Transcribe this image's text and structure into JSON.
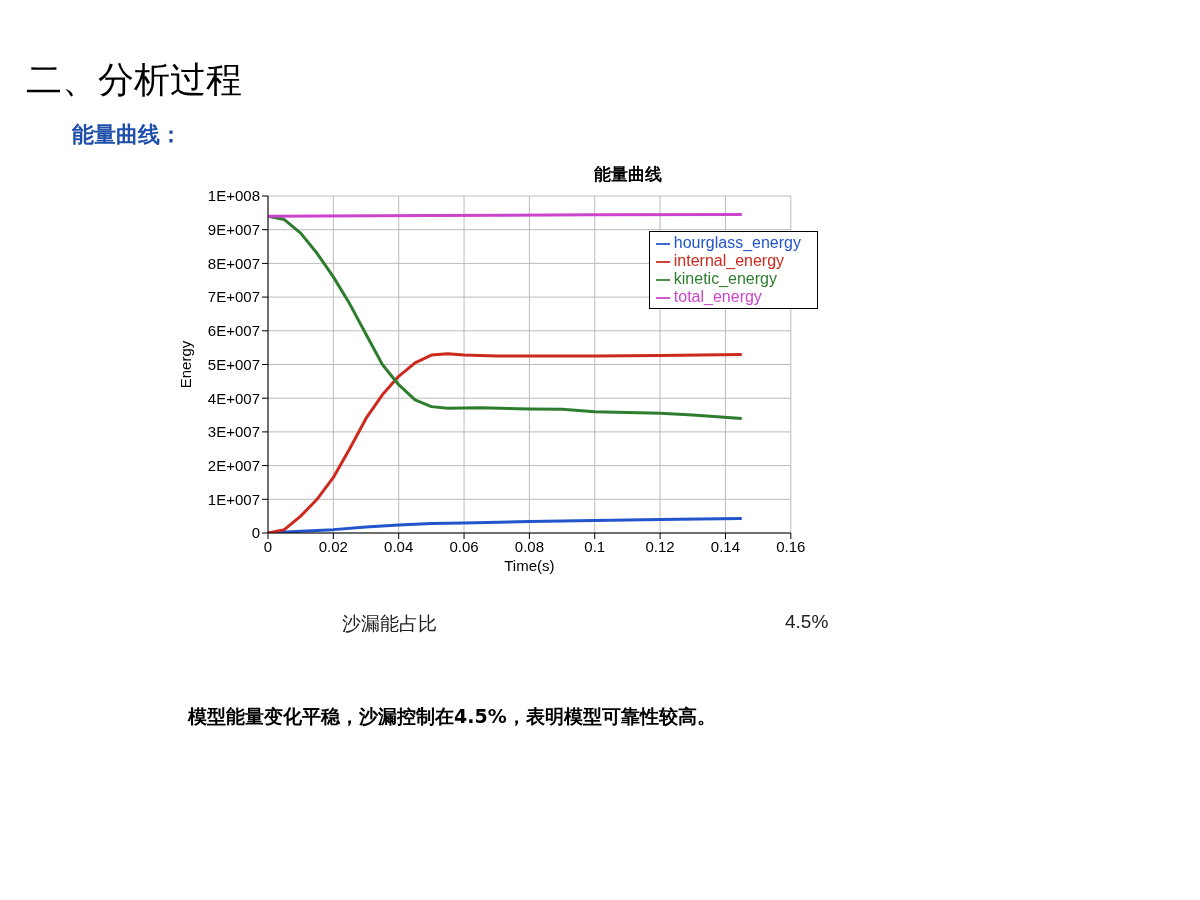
{
  "chart_data": {
    "type": "line",
    "title": "能量曲线",
    "xlabel": "Time(s)",
    "ylabel": "Energy",
    "xlim": [
      0,
      0.16
    ],
    "xticks": [
      0,
      0.02,
      0.04,
      0.06,
      0.08,
      0.1,
      0.12,
      0.14,
      0.16
    ],
    "ylim": [
      0,
      100000000
    ],
    "yticks": [
      {
        "value": 0,
        "label": "0"
      },
      {
        "value": 10000000,
        "label": "1E+007"
      },
      {
        "value": 20000000,
        "label": "2E+007"
      },
      {
        "value": 30000000,
        "label": "3E+007"
      },
      {
        "value": 40000000,
        "label": "4E+007"
      },
      {
        "value": 50000000,
        "label": "5E+007"
      },
      {
        "value": 60000000,
        "label": "6E+007"
      },
      {
        "value": 70000000,
        "label": "7E+007"
      },
      {
        "value": 80000000,
        "label": "8E+007"
      },
      {
        "value": 90000000,
        "label": "9E+007"
      },
      {
        "value": 100000000,
        "label": "1E+008"
      }
    ],
    "grid": true,
    "legend": "top right",
    "marker": "none",
    "line_style": "solid",
    "series": [
      {
        "name": "hourglass_energy",
        "color": "#2255cc",
        "x": [
          0,
          0.01,
          0.02,
          0.03,
          0.04,
          0.05,
          0.06,
          0.08,
          0.1,
          0.12,
          0.145
        ],
        "values": [
          0,
          500000,
          1000000,
          1800000,
          2400000,
          2800000,
          3000000,
          3400000,
          3700000,
          4000000,
          4300000
        ]
      },
      {
        "name": "internal_energy",
        "color": "#cc2a1e",
        "x": [
          0,
          0.005,
          0.01,
          0.015,
          0.02,
          0.025,
          0.03,
          0.035,
          0.04,
          0.045,
          0.05,
          0.055,
          0.06,
          0.07,
          0.1,
          0.12,
          0.145
        ],
        "values": [
          0,
          1000000,
          5000000,
          10000000,
          16500000,
          25000000,
          34000000,
          41000000,
          46500000,
          50500000,
          52800000,
          53200000,
          52800000,
          52500000,
          52500000,
          52700000,
          53000000
        ]
      },
      {
        "name": "kinetic_energy",
        "color": "#2e7d2e",
        "x": [
          0,
          0.005,
          0.01,
          0.015,
          0.02,
          0.025,
          0.03,
          0.035,
          0.04,
          0.045,
          0.05,
          0.055,
          0.065,
          0.08,
          0.09,
          0.1,
          0.12,
          0.13,
          0.145
        ],
        "values": [
          94000000,
          93000000,
          89000000,
          83000000,
          76000000,
          68000000,
          59000000,
          50000000,
          44000000,
          39500000,
          37500000,
          37000000,
          37200000,
          36800000,
          36700000,
          36000000,
          35500000,
          35000000,
          34000000
        ]
      },
      {
        "name": "total_energy",
        "color": "#cc44cc",
        "x": [
          0,
          0.05,
          0.1,
          0.145
        ],
        "values": [
          94000000,
          94200000,
          94400000,
          94500000
        ]
      }
    ],
    "annotations": [
      "二、分析过程",
      "能量曲线：",
      "沙漏能占比",
      "4.5%",
      "模型能量变化平稳，沙漏控制在4.5%，表明模型可靠性较高。"
    ]
  }
}
